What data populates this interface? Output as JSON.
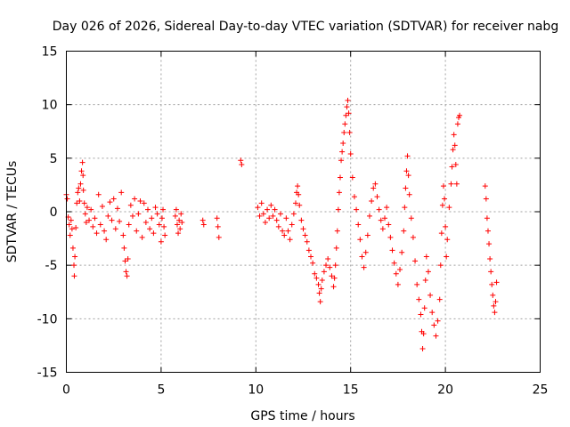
{
  "chart_data": {
    "type": "scatter",
    "title": "Day 026 of 2026, Sidereal Day-to-day VTEC variation (SDTVAR) for receiver nabg",
    "xlabel": "GPS time / hours",
    "ylabel": "SDTVAR / TECUs",
    "xlim": [
      0,
      25
    ],
    "ylim": [
      -15,
      15
    ],
    "xticks": [
      0,
      5,
      10,
      15,
      20,
      25
    ],
    "yticks": [
      -15,
      -10,
      -5,
      0,
      5,
      10,
      15
    ],
    "xtick_labels": [
      "0",
      "5",
      "10",
      "15",
      "20",
      "25"
    ],
    "ytick_labels": [
      "-15",
      "-10",
      "-5",
      "0",
      "5",
      "10",
      "15"
    ],
    "grid": true,
    "marker": "+",
    "series": [
      {
        "name": "SDTVAR",
        "color": "#ff0000",
        "points": [
          [
            0.0,
            1.6
          ],
          [
            0.05,
            1.2
          ],
          [
            0.1,
            -0.5
          ],
          [
            0.15,
            -1.2
          ],
          [
            0.2,
            -2.2
          ],
          [
            0.25,
            -0.8
          ],
          [
            0.3,
            -1.6
          ],
          [
            0.35,
            -3.4
          ],
          [
            0.4,
            -5.0
          ],
          [
            0.42,
            -6.0
          ],
          [
            0.45,
            -4.2
          ],
          [
            0.5,
            -1.5
          ],
          [
            0.55,
            0.8
          ],
          [
            0.6,
            1.8
          ],
          [
            0.65,
            2.2
          ],
          [
            0.7,
            1.0
          ],
          [
            0.75,
            2.6
          ],
          [
            0.8,
            3.8
          ],
          [
            0.85,
            4.6
          ],
          [
            0.88,
            3.4
          ],
          [
            0.9,
            2.0
          ],
          [
            0.95,
            0.8
          ],
          [
            1.0,
            -0.2
          ],
          [
            1.05,
            -1.0
          ],
          [
            1.1,
            0.4
          ],
          [
            1.2,
            -0.8
          ],
          [
            1.3,
            0.2
          ],
          [
            1.4,
            -1.4
          ],
          [
            1.5,
            -0.6
          ],
          [
            1.6,
            -2.0
          ],
          [
            1.7,
            1.6
          ],
          [
            1.8,
            -1.2
          ],
          [
            1.9,
            0.5
          ],
          [
            2.0,
            -1.8
          ],
          [
            2.1,
            -2.6
          ],
          [
            2.2,
            -0.4
          ],
          [
            2.3,
            0.9
          ],
          [
            2.4,
            -0.8
          ],
          [
            2.5,
            1.2
          ],
          [
            2.6,
            -1.6
          ],
          [
            2.7,
            0.3
          ],
          [
            2.8,
            -0.9
          ],
          [
            2.9,
            1.8
          ],
          [
            3.0,
            -2.2
          ],
          [
            3.05,
            -3.4
          ],
          [
            3.1,
            -4.6
          ],
          [
            3.15,
            -5.6
          ],
          [
            3.2,
            -6.0
          ],
          [
            3.25,
            -4.4
          ],
          [
            3.3,
            -1.2
          ],
          [
            3.4,
            0.6
          ],
          [
            3.5,
            -0.4
          ],
          [
            3.6,
            1.2
          ],
          [
            3.7,
            -1.8
          ],
          [
            3.8,
            -0.2
          ],
          [
            3.9,
            1.0
          ],
          [
            4.0,
            -2.4
          ],
          [
            4.1,
            0.8
          ],
          [
            4.2,
            -1.0
          ],
          [
            4.3,
            0.2
          ],
          [
            4.4,
            -1.6
          ],
          [
            4.5,
            -0.6
          ],
          [
            4.6,
            -2.0
          ],
          [
            4.7,
            0.4
          ],
          [
            4.8,
            -0.2
          ],
          [
            4.9,
            -1.2
          ],
          [
            5.0,
            -2.8
          ],
          [
            5.05,
            -0.6
          ],
          [
            5.1,
            0.2
          ],
          [
            5.15,
            -1.4
          ],
          [
            5.2,
            -2.2
          ],
          [
            5.75,
            -0.4
          ],
          [
            5.8,
            0.2
          ],
          [
            5.85,
            -1.2
          ],
          [
            5.9,
            -2.0
          ],
          [
            5.95,
            -0.8
          ],
          [
            6.0,
            -1.6
          ],
          [
            6.05,
            -0.2
          ],
          [
            6.1,
            -1.0
          ],
          [
            7.2,
            -0.8
          ],
          [
            7.25,
            -1.2
          ],
          [
            7.95,
            -0.6
          ],
          [
            8.0,
            -1.4
          ],
          [
            8.05,
            -2.4
          ],
          [
            9.2,
            4.8
          ],
          [
            9.25,
            4.4
          ],
          [
            10.1,
            0.4
          ],
          [
            10.2,
            -0.4
          ],
          [
            10.3,
            0.8
          ],
          [
            10.4,
            -0.2
          ],
          [
            10.5,
            -1.0
          ],
          [
            10.6,
            0.2
          ],
          [
            10.7,
            -0.6
          ],
          [
            10.8,
            0.6
          ],
          [
            10.9,
            -0.4
          ],
          [
            11.0,
            0.2
          ],
          [
            11.1,
            -0.8
          ],
          [
            11.2,
            -1.4
          ],
          [
            11.3,
            -0.2
          ],
          [
            11.4,
            -1.8
          ],
          [
            11.5,
            -2.2
          ],
          [
            11.6,
            -0.6
          ],
          [
            11.7,
            -1.8
          ],
          [
            11.8,
            -2.6
          ],
          [
            11.9,
            -1.2
          ],
          [
            12.0,
            -0.2
          ],
          [
            12.1,
            0.8
          ],
          [
            12.15,
            1.8
          ],
          [
            12.2,
            2.4
          ],
          [
            12.25,
            1.6
          ],
          [
            12.3,
            0.6
          ],
          [
            12.4,
            -0.8
          ],
          [
            12.5,
            -1.6
          ],
          [
            12.6,
            -2.2
          ],
          [
            12.7,
            -2.8
          ],
          [
            12.8,
            -3.6
          ],
          [
            12.9,
            -4.2
          ],
          [
            13.0,
            -4.8
          ],
          [
            13.1,
            -5.8
          ],
          [
            13.2,
            -6.2
          ],
          [
            13.3,
            -6.8
          ],
          [
            13.35,
            -7.6
          ],
          [
            13.4,
            -8.4
          ],
          [
            13.45,
            -7.2
          ],
          [
            13.5,
            -6.4
          ],
          [
            13.6,
            -5.6
          ],
          [
            13.7,
            -5.0
          ],
          [
            13.8,
            -4.4
          ],
          [
            13.9,
            -5.2
          ],
          [
            14.0,
            -6.0
          ],
          [
            14.1,
            -7.0
          ],
          [
            14.15,
            -6.2
          ],
          [
            14.2,
            -5.0
          ],
          [
            14.25,
            -3.4
          ],
          [
            14.3,
            -1.8
          ],
          [
            14.35,
            0.2
          ],
          [
            14.4,
            1.8
          ],
          [
            14.45,
            3.2
          ],
          [
            14.5,
            4.8
          ],
          [
            14.55,
            5.6
          ],
          [
            14.6,
            6.4
          ],
          [
            14.65,
            7.4
          ],
          [
            14.7,
            8.2
          ],
          [
            14.75,
            9.0
          ],
          [
            14.8,
            9.8
          ],
          [
            14.85,
            10.4
          ],
          [
            14.9,
            9.2
          ],
          [
            14.95,
            7.4
          ],
          [
            15.0,
            5.4
          ],
          [
            15.1,
            3.2
          ],
          [
            15.2,
            1.4
          ],
          [
            15.3,
            0.2
          ],
          [
            15.4,
            -1.2
          ],
          [
            15.5,
            -2.6
          ],
          [
            15.6,
            -4.2
          ],
          [
            15.7,
            -5.2
          ],
          [
            15.8,
            -3.8
          ],
          [
            15.9,
            -2.2
          ],
          [
            16.0,
            -0.4
          ],
          [
            16.1,
            1.0
          ],
          [
            16.2,
            2.2
          ],
          [
            16.3,
            2.6
          ],
          [
            16.4,
            1.4
          ],
          [
            16.5,
            0.2
          ],
          [
            16.6,
            -0.8
          ],
          [
            16.7,
            -1.6
          ],
          [
            16.8,
            -0.6
          ],
          [
            16.9,
            0.4
          ],
          [
            17.0,
            -1.2
          ],
          [
            17.1,
            -2.4
          ],
          [
            17.2,
            -3.6
          ],
          [
            17.3,
            -4.8
          ],
          [
            17.4,
            -5.8
          ],
          [
            17.5,
            -6.8
          ],
          [
            17.6,
            -5.4
          ],
          [
            17.7,
            -3.8
          ],
          [
            17.8,
            -1.8
          ],
          [
            17.85,
            0.4
          ],
          [
            17.9,
            2.2
          ],
          [
            17.95,
            3.8
          ],
          [
            18.0,
            5.2
          ],
          [
            18.05,
            3.4
          ],
          [
            18.1,
            1.6
          ],
          [
            18.2,
            -0.6
          ],
          [
            18.3,
            -2.4
          ],
          [
            18.4,
            -4.6
          ],
          [
            18.5,
            -6.8
          ],
          [
            18.6,
            -8.2
          ],
          [
            18.7,
            -9.6
          ],
          [
            18.75,
            -11.2
          ],
          [
            18.8,
            -12.8
          ],
          [
            18.85,
            -11.4
          ],
          [
            18.9,
            -9.0
          ],
          [
            18.95,
            -6.4
          ],
          [
            19.0,
            -4.2
          ],
          [
            19.1,
            -5.6
          ],
          [
            19.2,
            -7.8
          ],
          [
            19.3,
            -9.4
          ],
          [
            19.4,
            -10.6
          ],
          [
            19.5,
            -11.6
          ],
          [
            19.6,
            -10.2
          ],
          [
            19.7,
            -8.2
          ],
          [
            19.75,
            -5.0
          ],
          [
            19.8,
            -2.0
          ],
          [
            19.85,
            0.6
          ],
          [
            19.9,
            2.4
          ],
          [
            19.95,
            1.2
          ],
          [
            20.0,
            -1.4
          ],
          [
            20.05,
            -4.2
          ],
          [
            20.1,
            -2.6
          ],
          [
            20.2,
            0.4
          ],
          [
            20.3,
            2.6
          ],
          [
            20.35,
            4.2
          ],
          [
            20.4,
            5.8
          ],
          [
            20.45,
            7.2
          ],
          [
            20.5,
            6.2
          ],
          [
            20.55,
            4.4
          ],
          [
            20.6,
            2.6
          ],
          [
            20.65,
            8.2
          ],
          [
            20.7,
            8.8
          ],
          [
            20.75,
            9.0
          ],
          [
            22.1,
            2.4
          ],
          [
            22.15,
            1.2
          ],
          [
            22.2,
            -0.6
          ],
          [
            22.25,
            -1.8
          ],
          [
            22.3,
            -3.0
          ],
          [
            22.35,
            -4.4
          ],
          [
            22.4,
            -5.6
          ],
          [
            22.45,
            -6.8
          ],
          [
            22.5,
            -7.8
          ],
          [
            22.55,
            -8.8
          ],
          [
            22.6,
            -9.4
          ],
          [
            22.65,
            -8.4
          ],
          [
            22.7,
            -6.6
          ]
        ]
      }
    ]
  }
}
